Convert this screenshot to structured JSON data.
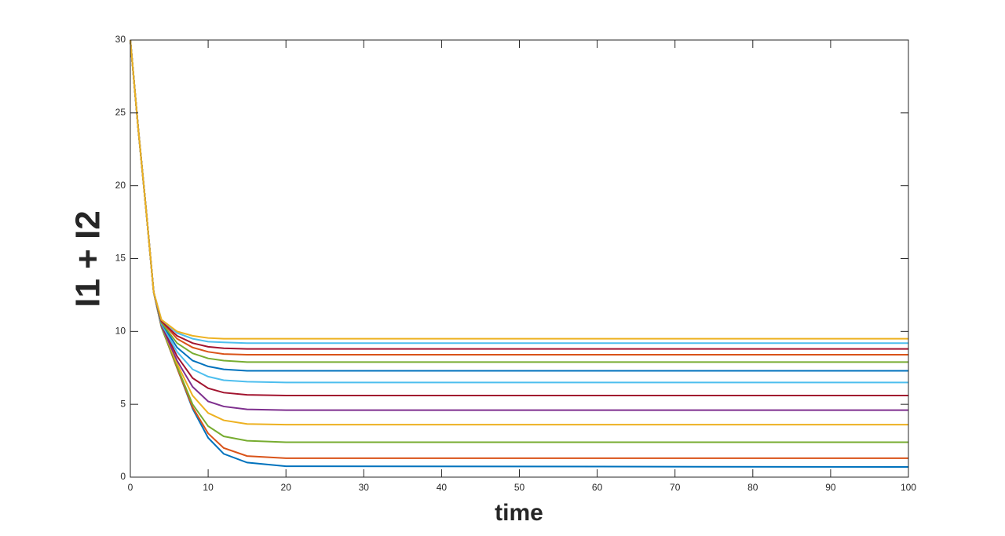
{
  "chart_data": {
    "type": "line",
    "x_label": "time",
    "y_label": "I1 + I2",
    "x": [
      0,
      1,
      2,
      3,
      4,
      6,
      8,
      10,
      12,
      15,
      20,
      100
    ],
    "xlim": [
      0,
      100
    ],
    "xticks": [
      0,
      10,
      20,
      30,
      40,
      50,
      60,
      70,
      80,
      90,
      100
    ],
    "ylim": [
      0,
      30
    ],
    "yticks": [
      0,
      5,
      10,
      15,
      20,
      25,
      30
    ],
    "grid": false,
    "series": [
      {
        "color": "#0072BD",
        "values": [
          30,
          24,
          18.5,
          12.7,
          10.3,
          7.5,
          4.7,
          2.7,
          1.6,
          1.0,
          0.75,
          0.7
        ]
      },
      {
        "color": "#D95319",
        "values": [
          30,
          24,
          18.5,
          12.7,
          10.3,
          7.5,
          4.8,
          3.0,
          2.0,
          1.45,
          1.3,
          1.3
        ]
      },
      {
        "color": "#77AC30",
        "values": [
          30,
          24,
          18.5,
          12.7,
          10.3,
          7.6,
          5.0,
          3.5,
          2.8,
          2.5,
          2.4,
          2.4
        ]
      },
      {
        "color": "#EDB120",
        "values": [
          30,
          24,
          18.5,
          12.7,
          10.4,
          7.8,
          5.6,
          4.4,
          3.9,
          3.65,
          3.6,
          3.6
        ]
      },
      {
        "color": "#7E2F8E",
        "values": [
          30,
          24,
          18.5,
          12.7,
          10.4,
          8.0,
          6.2,
          5.2,
          4.85,
          4.65,
          4.6,
          4.6
        ]
      },
      {
        "color": "#A2142F",
        "values": [
          30,
          24,
          18.5,
          12.7,
          10.5,
          8.3,
          6.8,
          6.1,
          5.8,
          5.65,
          5.6,
          5.6
        ]
      },
      {
        "color": "#4DBEEE",
        "values": [
          30,
          24,
          18.5,
          12.7,
          10.5,
          8.6,
          7.4,
          6.9,
          6.65,
          6.55,
          6.5,
          6.5
        ]
      },
      {
        "color": "#0072BD",
        "values": [
          30,
          24,
          18.5,
          12.7,
          10.6,
          8.9,
          8.0,
          7.6,
          7.4,
          7.3,
          7.3,
          7.3
        ]
      },
      {
        "color": "#77AC30",
        "values": [
          30,
          24,
          18.5,
          12.7,
          10.6,
          9.2,
          8.5,
          8.15,
          8.0,
          7.9,
          7.9,
          7.9
        ]
      },
      {
        "color": "#D95319",
        "values": [
          30,
          24,
          18.5,
          12.7,
          10.7,
          9.5,
          8.9,
          8.6,
          8.45,
          8.4,
          8.4,
          8.4
        ]
      },
      {
        "color": "#A2142F",
        "values": [
          30,
          24,
          18.5,
          12.7,
          10.7,
          9.7,
          9.2,
          8.95,
          8.85,
          8.8,
          8.8,
          8.8
        ]
      },
      {
        "color": "#4DBEEE",
        "values": [
          30,
          24,
          18.5,
          12.7,
          10.8,
          9.9,
          9.5,
          9.3,
          9.25,
          9.2,
          9.2,
          9.2
        ]
      },
      {
        "color": "#EDB120",
        "values": [
          30,
          24,
          18.5,
          12.7,
          10.8,
          10.0,
          9.7,
          9.55,
          9.5,
          9.5,
          9.5,
          9.5
        ]
      }
    ]
  }
}
